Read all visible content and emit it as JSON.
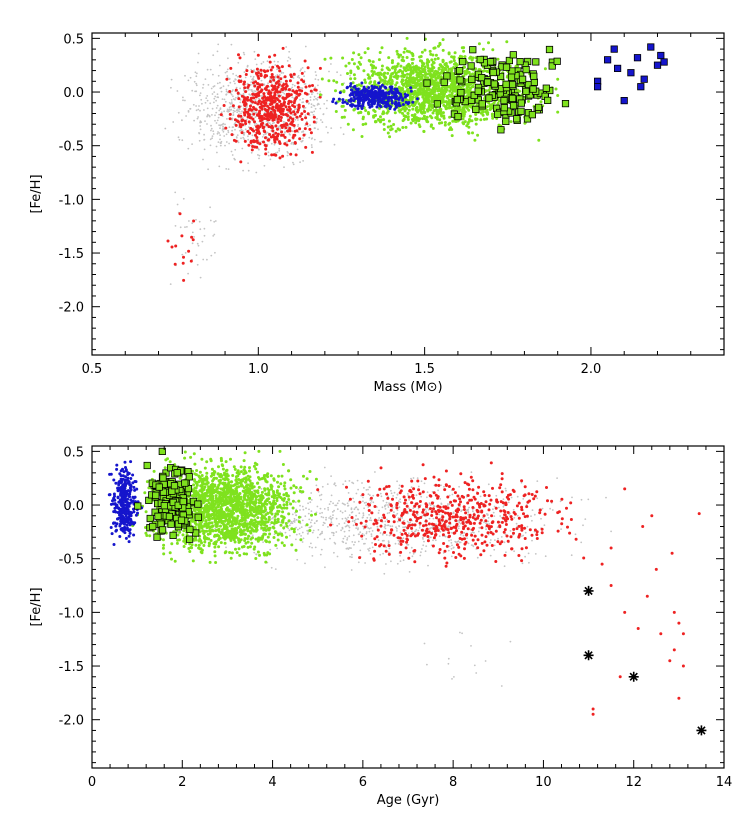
{
  "figure_title": "",
  "colors": {
    "gray": "#c4c4c4",
    "red": "#ee2222",
    "green": "#7fe21e",
    "blue": "#1515cc",
    "marker_edge": "#000000"
  },
  "chart_data": [
    {
      "type": "scatter",
      "title": "",
      "xlabel": "Mass (M⊙)",
      "ylabel": "[Fe/H]",
      "xlim": [
        0.5,
        2.4
      ],
      "ylim": [
        -2.45,
        0.55
      ],
      "xticks": [
        0.5,
        1.0,
        1.5,
        2.0
      ],
      "xtick_labels": [
        "0.5",
        "1.0",
        "1.5",
        "2.0"
      ],
      "yticks": [
        0.5,
        0.0,
        -0.5,
        -1.0,
        -1.5,
        -2.0
      ],
      "ytick_labels": [
        "0.5",
        "0.0",
        "-0.5",
        "-1.0",
        "-1.5",
        "-2.0"
      ],
      "series": [
        {
          "name": "gray",
          "marker": "dot",
          "clusters": [
            {
              "xmin": 0.72,
              "xmax": 1.28,
              "ymin": -0.75,
              "ymax": 0.45,
              "n": 900
            },
            {
              "xmin": 0.7,
              "xmax": 0.92,
              "ymin": -1.95,
              "ymax": -0.8,
              "n": 40
            }
          ]
        },
        {
          "name": "red",
          "marker": "dot",
          "clusters": [
            {
              "xmin": 0.88,
              "xmax": 1.2,
              "ymin": -0.7,
              "ymax": 0.42,
              "n": 520
            },
            {
              "xmin": 0.72,
              "xmax": 0.82,
              "ymin": -1.95,
              "ymax": -0.95,
              "n": 14
            }
          ]
        },
        {
          "name": "green",
          "marker": "dot",
          "clusters": [
            {
              "xmin": 1.18,
              "xmax": 1.9,
              "ymin": -0.45,
              "ymax": 0.5,
              "n": 1700
            }
          ]
        },
        {
          "name": "blue",
          "marker": "dot",
          "clusters": [
            {
              "xmin": 1.22,
              "xmax": 1.48,
              "ymin": -0.18,
              "ymax": 0.1,
              "n": 320
            }
          ]
        },
        {
          "name": "green-square",
          "marker": "square",
          "clusters": [
            {
              "xmin": 1.5,
              "xmax": 1.98,
              "ymin": -0.4,
              "ymax": 0.5,
              "n": 150
            }
          ]
        },
        {
          "name": "blue-square",
          "marker": "square",
          "points": [
            {
              "x": 2.02,
              "y": 0.1
            },
            {
              "x": 2.02,
              "y": 0.05
            },
            {
              "x": 2.05,
              "y": 0.3
            },
            {
              "x": 2.07,
              "y": 0.4
            },
            {
              "x": 2.08,
              "y": 0.22
            },
            {
              "x": 2.1,
              "y": -0.08
            },
            {
              "x": 2.12,
              "y": 0.18
            },
            {
              "x": 2.14,
              "y": 0.32
            },
            {
              "x": 2.15,
              "y": 0.05
            },
            {
              "x": 2.18,
              "y": 0.42
            },
            {
              "x": 2.2,
              "y": 0.25
            },
            {
              "x": 2.21,
              "y": 0.34
            },
            {
              "x": 2.22,
              "y": 0.28
            },
            {
              "x": 2.16,
              "y": 0.12
            }
          ]
        }
      ]
    },
    {
      "type": "scatter",
      "title": "",
      "xlabel": "Age (Gyr)",
      "ylabel": "[Fe/H]",
      "xlim": [
        0,
        14
      ],
      "ylim": [
        -2.45,
        0.55
      ],
      "xticks": [
        0,
        2,
        4,
        6,
        8,
        10,
        12,
        14
      ],
      "xtick_labels": [
        "0",
        "2",
        "4",
        "6",
        "8",
        "10",
        "12",
        "14"
      ],
      "yticks": [
        0.5,
        0.0,
        -0.5,
        -1.0,
        -1.5,
        -2.0
      ],
      "ytick_labels": [
        "0.5",
        "0.0",
        "-0.5",
        "-1.0",
        "-1.5",
        "-2.0"
      ],
      "series": [
        {
          "name": "gray",
          "marker": "dot",
          "clusters": [
            {
              "xmin": 2.0,
              "xmax": 11.5,
              "ymin": -0.65,
              "ymax": 0.35,
              "n": 900
            },
            {
              "xmin": 7.0,
              "xmax": 9.8,
              "ymin": -1.85,
              "ymax": -1.0,
              "n": 14
            }
          ]
        },
        {
          "name": "red",
          "marker": "dot",
          "clusters": [
            {
              "xmin": 5.0,
              "xmax": 11.2,
              "ymin": -0.65,
              "ymax": 0.4,
              "n": 520
            }
          ],
          "points": [
            {
              "x": 11.5,
              "y": -0.75
            },
            {
              "x": 11.8,
              "y": -1.0
            },
            {
              "x": 11.7,
              "y": -1.6
            },
            {
              "x": 11.1,
              "y": -1.9
            },
            {
              "x": 11.1,
              "y": -1.95
            },
            {
              "x": 12.1,
              "y": -1.15
            },
            {
              "x": 12.3,
              "y": -0.85
            },
            {
              "x": 12.5,
              "y": -0.6
            },
            {
              "x": 12.6,
              "y": -1.2
            },
            {
              "x": 12.8,
              "y": -1.45
            },
            {
              "x": 12.9,
              "y": -1.0
            },
            {
              "x": 12.9,
              "y": -1.35
            },
            {
              "x": 13.0,
              "y": -1.8
            },
            {
              "x": 13.1,
              "y": -1.2
            },
            {
              "x": 13.1,
              "y": -1.5
            },
            {
              "x": 13.0,
              "y": -1.1
            },
            {
              "x": 12.85,
              "y": -0.45
            },
            {
              "x": 13.45,
              "y": -0.08
            },
            {
              "x": 11.8,
              "y": 0.15
            },
            {
              "x": 12.2,
              "y": -0.2
            },
            {
              "x": 12.4,
              "y": -0.1
            },
            {
              "x": 11.5,
              "y": -0.4
            },
            {
              "x": 11.3,
              "y": -0.55
            }
          ]
        },
        {
          "name": "green",
          "marker": "dot",
          "clusters": [
            {
              "xmin": 0.9,
              "xmax": 5.0,
              "ymin": -0.55,
              "ymax": 0.5,
              "n": 1700
            }
          ]
        },
        {
          "name": "blue",
          "marker": "dot",
          "clusters": [
            {
              "xmin": 0.35,
              "xmax": 1.1,
              "ymin": -0.4,
              "ymax": 0.45,
              "n": 320
            }
          ]
        },
        {
          "name": "green-square",
          "marker": "square",
          "clusters": [
            {
              "xmin": 1.0,
              "xmax": 2.5,
              "ymin": -0.42,
              "ymax": 0.5,
              "n": 150
            }
          ]
        },
        {
          "name": "star",
          "marker": "asterisk",
          "points": [
            {
              "x": 11.0,
              "y": -0.8
            },
            {
              "x": 11.0,
              "y": -1.4
            },
            {
              "x": 12.0,
              "y": -1.6
            },
            {
              "x": 13.5,
              "y": -2.1
            }
          ]
        }
      ]
    }
  ]
}
